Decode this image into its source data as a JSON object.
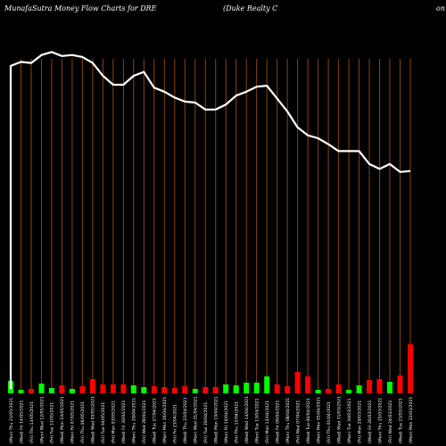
{
  "header": {
    "left": "MunafaSutra  Money Flow  Charts for DRE",
    "mid": "(Duke   Realty C",
    "right": "on"
  },
  "colors": {
    "background": "#000000",
    "grid": "#8b4513",
    "line": "#ffffff",
    "up": "#00ff00",
    "down": "#ff0000"
  },
  "chart_data": {
    "type": "line",
    "grid": true,
    "x": [
      "(Mon) Thu 21/05/2021",
      "(Wed) Fri 14/05/2021",
      "(Fri) Thu 13/05/2021",
      "(Mon) Wed 12/05/2021",
      "(Fri) Tue 11/05/2021",
      "(Wed) Mon 10/05/2021",
      "(Mon) Fri 07/05/2021",
      "(Fri) Thu 06/05/2021",
      "(Wed) Wed 05/05/2021",
      "(Fri) Tue 04/05/2021",
      "(Fri) Mon 03/05/2021",
      "(Wed) Fri 30/04/2021",
      "(Mon) Thu 29/04/2021",
      "(Fri) Wed 28/04/2021",
      "(Wed) Tue 27/04/2021",
      "(Mon) Mon 26/04/2021",
      "(Fri) Fri 23/04/2021",
      "(Wed) Thu 22/04/2021",
      "(Mon) Wed 21/04/2021",
      "(Fri) Tue 20/04/2021",
      "(Wed) Mon 19/04/2021",
      "(Mon) Fri 16/04/2021",
      "(Fri) Thu 15/04/2021",
      "(Wed) Wed 14/04/2021",
      "(Mon) Tue 13/04/2021",
      "(Fri) Mon 12/04/2021",
      "(Wed) Fri 09/04/2021",
      "(Mon) Thu 08/04/2021",
      "(Fri) Wed 07/04/2021",
      "(Wed) Tue 06/04/2021",
      "(Mon) Mon 05/04/2021",
      "(Fri) Thu 01/04/2021",
      "(Wed) Wed 31/03/2021",
      "(Mon) Tue 30/03/2021",
      "(Fri) Mon 29/03/2021",
      "(Wed) Fri 26/03/2021",
      "(Mon) Thu 25/03/2021",
      "(Fri) Wed 24/03/2021",
      "(Wed) Tue 23/03/2021",
      "(Mon) Mon 22/03/2021"
    ],
    "series": [
      {
        "values": [
          49.2,
          49.6,
          49.5,
          50.3,
          50.6,
          50.2,
          50.3,
          50.1,
          49.5,
          48.2,
          47.3,
          47.3,
          48.2,
          48.6,
          47.0,
          46.6,
          46.0,
          45.6,
          45.5,
          44.8,
          44.8,
          45.3,
          46.2,
          46.6,
          47.1,
          47.2,
          45.9,
          44.6,
          43.0,
          42.2,
          41.9,
          41.3,
          40.6,
          40.6,
          40.6,
          39.3,
          38.8,
          39.3,
          38.5,
          38.6
        ]
      }
    ],
    "volume": {
      "values": [
        14,
        4,
        5,
        11,
        6,
        9,
        5,
        8,
        16,
        10,
        10,
        10,
        9,
        7,
        8,
        7,
        6,
        8,
        5,
        7,
        7,
        10,
        9,
        12,
        12,
        19,
        10,
        8,
        24,
        19,
        4,
        5,
        10,
        4,
        9,
        15,
        16,
        13,
        20,
        55
      ],
      "direction": [
        "up",
        "up",
        "down",
        "up",
        "up",
        "down",
        "up",
        "down",
        "down",
        "down",
        "down",
        "down",
        "up",
        "up",
        "down",
        "down",
        "down",
        "down",
        "up",
        "down",
        "down",
        "up",
        "up",
        "up",
        "up",
        "up",
        "down",
        "down",
        "down",
        "down",
        "up",
        "down",
        "down",
        "up",
        "up",
        "down",
        "down",
        "up",
        "down",
        "down"
      ]
    }
  }
}
